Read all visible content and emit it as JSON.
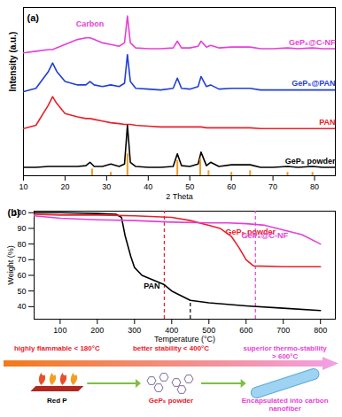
{
  "chart_data": [
    {
      "type": "line",
      "title": "(a)",
      "xlabel": "2 Theta",
      "ylabel": "Intensity (a.u.)",
      "xlim": [
        10,
        85
      ],
      "xticks": [
        10,
        20,
        30,
        40,
        50,
        60,
        70,
        80
      ],
      "ylim": [
        0,
        100
      ],
      "tick_labels": "x",
      "x": [
        10,
        13,
        16,
        17,
        18,
        20,
        23,
        25,
        26,
        27,
        29,
        31,
        33,
        34.3,
        35,
        35.7,
        37,
        40,
        43,
        46,
        47,
        48,
        50,
        52,
        52.7,
        54,
        55,
        57,
        60,
        64.5,
        67,
        70,
        73.5,
        76,
        79.5,
        82,
        85
      ],
      "series": [
        {
          "name": "GeP₅@C-NF",
          "color": "#e63fd6",
          "values": [
            73,
            74,
            75,
            75,
            76,
            78,
            81,
            82,
            82,
            81,
            79,
            78,
            77,
            79,
            95,
            79,
            76,
            75.5,
            75.5,
            76,
            80,
            76,
            76,
            77,
            80,
            76.5,
            77.5,
            76,
            76.5,
            76.5,
            75.5,
            75.5,
            76,
            75.5,
            76,
            75.5,
            75.5
          ]
        },
        {
          "name": "GeP₅@PAN",
          "color": "#1f3fd6",
          "values": [
            50,
            52,
            62,
            67,
            62,
            56,
            54,
            54,
            56,
            54,
            53,
            54,
            53,
            55,
            72,
            56,
            52,
            51.5,
            51,
            52,
            58,
            52,
            51.5,
            53,
            59,
            53,
            54,
            51.5,
            52,
            52,
            51,
            51,
            51,
            51,
            51,
            51,
            51
          ]
        },
        {
          "name": "PAN",
          "color": "#e8202a",
          "values": [
            28,
            30,
            42,
            47,
            43,
            37,
            35,
            34,
            34,
            33.5,
            32.5,
            31.5,
            31,
            30.5,
            30.5,
            30.5,
            30,
            29.5,
            29,
            29,
            29,
            29,
            29,
            29,
            29,
            28.5,
            28.5,
            28.5,
            28.5,
            28.5,
            28,
            28,
            28,
            28,
            28,
            28,
            28
          ]
        },
        {
          "name": "GeP₅ powder",
          "color": "#000000",
          "values": [
            5,
            5,
            5.5,
            5.5,
            5.5,
            5.5,
            5.5,
            6,
            8,
            5.5,
            5.5,
            7,
            5.5,
            7,
            30,
            8,
            5.5,
            5,
            5,
            5.5,
            13,
            6,
            5.5,
            7,
            14,
            6,
            8,
            5.5,
            6.5,
            6.5,
            5,
            5,
            5.5,
            5,
            5.5,
            5,
            5
          ]
        },
        {
          "type": "bar",
          "color": "#f39a1f",
          "x": [
            26.5,
            31,
            35,
            47,
            52.5,
            54.5,
            60,
            64.5,
            73.5,
            79.5
          ],
          "values": [
            4,
            2,
            13,
            9,
            10,
            3,
            2,
            3,
            2,
            2
          ]
        }
      ],
      "annotations": [
        {
          "text": "Carbon",
          "x": 26,
          "y": 90,
          "color": "#e63fd6"
        }
      ]
    },
    {
      "type": "line",
      "title": "(b)",
      "xlabel": "Temperature (°C)",
      "ylabel": "Weight (%)",
      "xlim": [
        30,
        840
      ],
      "xticks": [
        100,
        200,
        300,
        400,
        500,
        600,
        700,
        800
      ],
      "ylim": [
        32,
        101
      ],
      "yticks": [
        40,
        50,
        60,
        70,
        80,
        90,
        100
      ],
      "series": [
        {
          "name": "PAN",
          "color": "#000000",
          "x": [
            30,
            100,
            200,
            250,
            265,
            275,
            290,
            300,
            320,
            350,
            380,
            400,
            450,
            500,
            600,
            700,
            800
          ],
          "values": [
            100,
            100,
            99.5,
            99,
            97,
            85,
            72,
            65,
            60,
            57,
            54,
            50,
            44,
            42.5,
            40.5,
            39,
            37.5
          ]
        },
        {
          "name": "GeP₅ powder",
          "color": "#e8202a",
          "x": [
            30,
            100,
            200,
            300,
            400,
            450,
            500,
            530,
            560,
            580,
            600,
            620,
            700,
            800
          ],
          "values": [
            99,
            98.5,
            98.5,
            98,
            97,
            95,
            92,
            90,
            85,
            78,
            70,
            66,
            65.5,
            65.5
          ]
        },
        {
          "name": "GeP₅@C-NF",
          "color": "#e63fd6",
          "x": [
            30,
            100,
            200,
            300,
            400,
            500,
            550,
            600,
            650,
            700,
            750,
            800
          ],
          "values": [
            98,
            96.5,
            95.5,
            95,
            94,
            93.5,
            93.5,
            93,
            92,
            89,
            86,
            80
          ]
        }
      ],
      "vlines": [
        {
          "x": 380,
          "color": "#e8202a",
          "line_style": "dashed"
        },
        {
          "x": 450,
          "ymax": 44,
          "color": "#000000",
          "line_style": "dashed"
        },
        {
          "x": 625,
          "color": "#e63fd6",
          "line_style": "dashed"
        }
      ],
      "schematic": {
        "stages": [
          {
            "text": "highly flammable < 180°C",
            "color": "#e8202a"
          },
          {
            "text": "better stability < 400°C",
            "color": "#e8202a"
          },
          {
            "text": "superior thermo-stability > 600°C",
            "color": "#e63fd6"
          }
        ],
        "materials": [
          {
            "text": "Red P",
            "color": "#000000"
          },
          {
            "text": "GeP₅ powder",
            "color": "#e8202a"
          },
          {
            "text": "Encapsulated into carbon nanofiber",
            "color": "#e63fd6"
          }
        ]
      }
    }
  ]
}
